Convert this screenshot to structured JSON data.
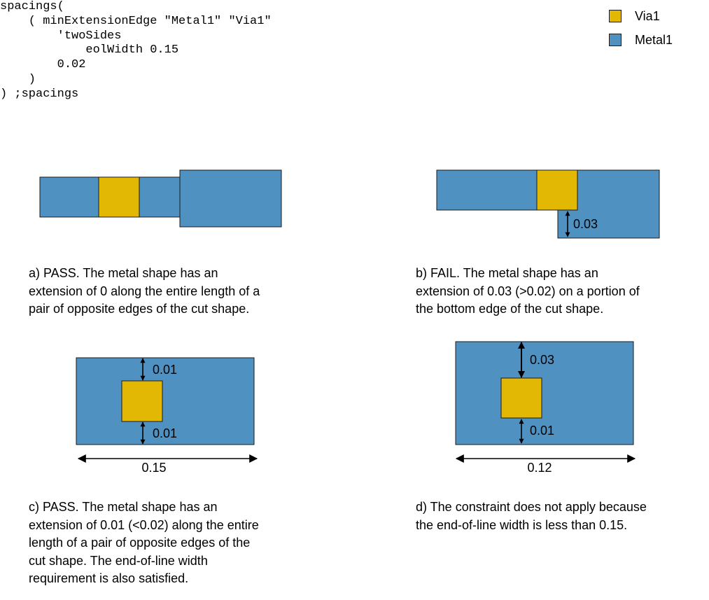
{
  "code": {
    "lines": [
      "spacings(",
      "    ( minExtensionEdge \"Metal1\" \"Via1\"",
      "        'twoSides",
      "            eolWidth 0.15",
      "        0.02",
      "    )",
      ") ;spacings"
    ]
  },
  "legend": {
    "items": [
      {
        "label": "Via1",
        "color": "#e2b804"
      },
      {
        "label": "Metal1",
        "color": "#4f92c2"
      }
    ]
  },
  "colors": {
    "metal": "#4f92c2",
    "via": "#e2b804",
    "outline": "#1a1a1a"
  },
  "figures": {
    "b": {
      "dim": "0.03"
    },
    "c": {
      "top_dim": "0.01",
      "bottom_dim": "0.01",
      "width_dim": "0.15"
    },
    "d": {
      "top_dim": "0.03",
      "bottom_dim": "0.01",
      "width_dim": "0.12"
    }
  },
  "captions": {
    "a": [
      "a) PASS. The metal shape has an",
      "extension of 0 along the entire length of a",
      "pair of opposite edges of the cut shape."
    ],
    "b": [
      "b) FAIL. The metal shape has an",
      "extension of 0.03 (>0.02) on a portion of",
      "the bottom edge of the cut shape."
    ],
    "c": [
      "c) PASS. The metal shape has an",
      "extension of 0.01 (<0.02) along the entire",
      "length of a pair of opposite edges of the",
      "cut shape. The end-of-line width",
      "requirement is also satisfied."
    ],
    "d": [
      "d) The constraint does not apply because",
      "the end-of-line width is less than 0.15."
    ]
  }
}
